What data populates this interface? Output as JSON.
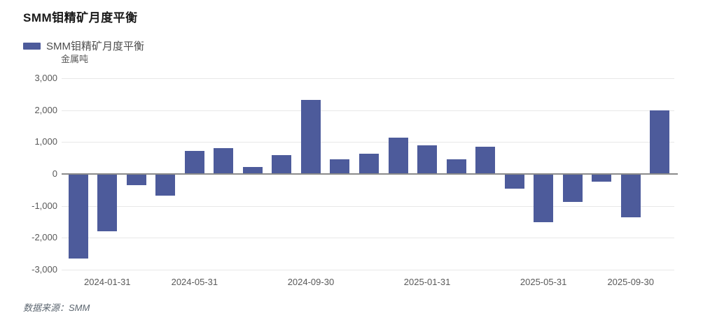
{
  "page": {
    "title": "SMM钼精矿月度平衡",
    "legend": {
      "label": "SMM钼精矿月度平衡",
      "swatch_color": "#4d5b9b"
    },
    "unit_label": "金属吨",
    "source_label": "数据来源：SMM"
  },
  "chart_data": {
    "type": "bar",
    "title": "SMM钼精矿月度平衡",
    "legend_entries": [
      "SMM钼精矿月度平衡"
    ],
    "legend_position": "top-left",
    "ylabel": "金属吨",
    "ylim": [
      -3000,
      3000
    ],
    "y_ticks": [
      "3,000",
      "2,000",
      "1,000",
      "0",
      "-1,000",
      "-2,000",
      "-3,000"
    ],
    "grid": true,
    "bar_color": "#4d5b9b",
    "values": [
      -2650,
      -1800,
      -350,
      -680,
      720,
      820,
      210,
      600,
      2320,
      470,
      630,
      1130,
      900,
      470,
      860,
      -470,
      -1510,
      -870,
      -230,
      -1360,
      2000
    ],
    "x_tick_labels": [
      {
        "index": 1,
        "label": "2024-01-31"
      },
      {
        "index": 4,
        "label": "2024-05-31"
      },
      {
        "index": 8,
        "label": "2024-09-30"
      },
      {
        "index": 12,
        "label": "2025-01-31"
      },
      {
        "index": 16,
        "label": "2025-05-31"
      },
      {
        "index": 19,
        "label": "2025-09-30"
      }
    ]
  }
}
